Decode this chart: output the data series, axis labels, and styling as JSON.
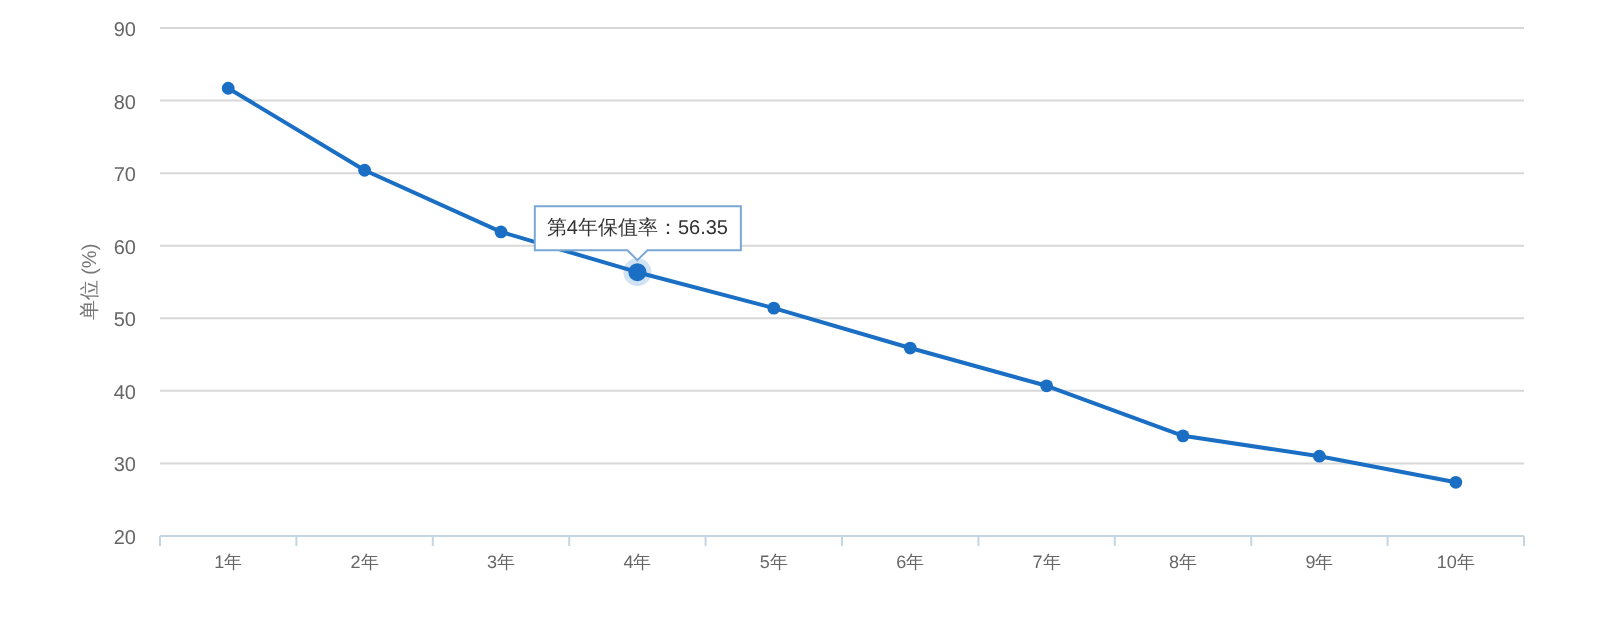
{
  "chart_data": {
    "type": "line",
    "ylabel": "单位 (%)",
    "categories": [
      "1年",
      "2年",
      "3年",
      "4年",
      "5年",
      "6年",
      "7年",
      "8年",
      "9年",
      "10年"
    ],
    "series": [
      {
        "color": "#1a6fc4",
        "values": [
          81.7,
          70.4,
          61.9,
          56.35,
          51.4,
          45.9,
          40.7,
          33.8,
          31.0,
          27.4
        ]
      }
    ],
    "ylim": [
      20,
      90
    ],
    "yticks": [
      20,
      30,
      40,
      50,
      60,
      70,
      80,
      90
    ],
    "grid": "y",
    "marker": "circle",
    "line_style": "solid",
    "annotations": [
      {
        "text": "第4年保值率：56.35",
        "x": "4年",
        "y": 56.35
      }
    ]
  }
}
